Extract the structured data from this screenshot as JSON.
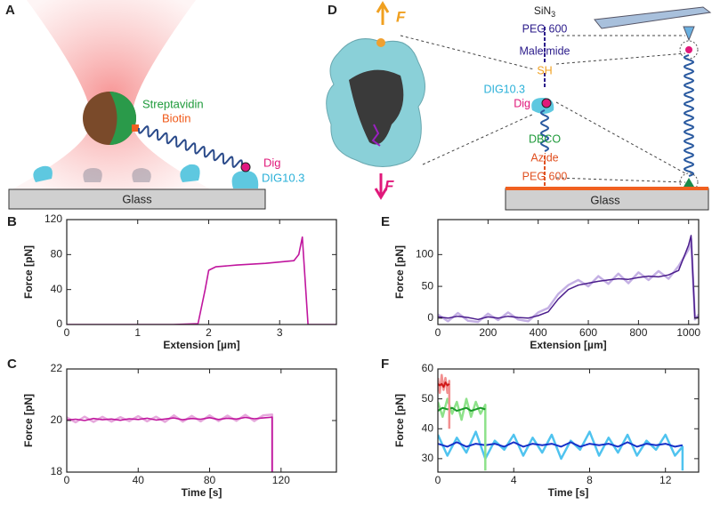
{
  "diagram_a": {
    "label": "A",
    "streptavidin": "Streptavidin",
    "biotin": "Biotin",
    "dig": "Dig",
    "dig10": "DIG10.3",
    "glass": "Glass"
  },
  "diagram_d": {
    "label": "D",
    "force_top": "F",
    "force_bottom": "F",
    "sin": "SiN",
    "sin_sub": "3",
    "chain": [
      "PEG 600",
      "Maleimide",
      "SH",
      "DIG10.3",
      "Dig",
      "DBCO",
      "Azide",
      "PEG 600"
    ],
    "glass": "Glass"
  },
  "chart_data": [
    {
      "type": "line",
      "label": "B",
      "ylabel": "Force [pN]",
      "xlabel": "Extension [µm]",
      "xlim": [
        0,
        3.8
      ],
      "ylim": [
        0,
        120
      ],
      "xticks": [
        0,
        1,
        2,
        3
      ],
      "yticks": [
        0,
        40,
        80,
        120
      ],
      "series": [
        {
          "color": "#c0169e",
          "width": 1.6,
          "x": [
            0,
            0.5,
            1,
            1.5,
            1.85,
            1.95,
            2.0,
            2.1,
            2.4,
            2.8,
            3.2,
            3.27,
            3.32,
            3.4,
            3.5,
            3.8
          ],
          "values": [
            0,
            0,
            0,
            0,
            1,
            40,
            62,
            66,
            68,
            70,
            73,
            80,
            100,
            0,
            0,
            0
          ]
        }
      ]
    },
    {
      "type": "line",
      "label": "C",
      "ylabel": "Force [pN]",
      "xlabel": "Time [s]",
      "xlim": [
        0,
        151
      ],
      "ylim": [
        18,
        22
      ],
      "xticks": [
        0,
        40,
        80,
        120
      ],
      "yticks": [
        18,
        20,
        22
      ],
      "series": [
        {
          "color": "#e6a8dc",
          "width": 2.5,
          "x": [
            0,
            5,
            10,
            15,
            20,
            25,
            30,
            35,
            40,
            45,
            50,
            55,
            60,
            65,
            70,
            75,
            80,
            85,
            90,
            95,
            100,
            105,
            110,
            115,
            115
          ],
          "values": [
            20.12,
            19.93,
            20.15,
            19.95,
            20.14,
            19.96,
            20.13,
            19.98,
            20.17,
            19.97,
            20.15,
            19.95,
            20.2,
            19.96,
            20.18,
            19.97,
            20.2,
            19.98,
            20.19,
            19.99,
            20.22,
            19.98,
            20.2,
            20.23,
            18
          ]
        },
        {
          "color": "#c0169e",
          "width": 1.6,
          "x": [
            0,
            5,
            10,
            15,
            20,
            25,
            30,
            35,
            40,
            45,
            50,
            55,
            60,
            65,
            70,
            75,
            80,
            85,
            90,
            95,
            100,
            105,
            110,
            115,
            115
          ],
          "values": [
            20.02,
            20.05,
            20.0,
            20.08,
            20.03,
            20.06,
            20.01,
            20.07,
            20.04,
            20.09,
            20.02,
            20.06,
            20.1,
            20.03,
            20.08,
            20.05,
            20.11,
            20.04,
            20.09,
            20.06,
            20.12,
            20.07,
            20.1,
            20.13,
            18
          ]
        }
      ]
    },
    {
      "type": "line",
      "label": "E",
      "ylabel": "Force [pN]",
      "xlabel": "Extension [µm]",
      "xlim": [
        0,
        1040
      ],
      "ylim": [
        -10,
        155
      ],
      "xticks": [
        0,
        200,
        400,
        600,
        800,
        1000
      ],
      "yticks": [
        0,
        50,
        100
      ],
      "series": [
        {
          "color": "#c4b0e4",
          "width": 2.5,
          "x": [
            0,
            40,
            80,
            120,
            160,
            200,
            240,
            280,
            320,
            360,
            400,
            440,
            480,
            520,
            560,
            600,
            640,
            680,
            720,
            760,
            800,
            840,
            880,
            920,
            960,
            1000,
            1010,
            1025,
            1040
          ],
          "values": [
            6,
            -5,
            8,
            -4,
            -6,
            7,
            -3,
            9,
            -2,
            -5,
            9,
            16,
            38,
            52,
            60,
            50,
            66,
            54,
            70,
            55,
            72,
            60,
            74,
            62,
            82,
            108,
            125,
            -2,
            6
          ]
        },
        {
          "color": "#4b1d8c",
          "width": 1.5,
          "x": [
            0,
            40,
            80,
            120,
            160,
            200,
            240,
            280,
            320,
            360,
            400,
            440,
            480,
            520,
            560,
            600,
            640,
            680,
            720,
            760,
            800,
            840,
            880,
            920,
            960,
            1000,
            1010,
            1025,
            1040
          ],
          "values": [
            2,
            0,
            3,
            1,
            -2,
            2,
            0,
            3,
            1,
            0,
            4,
            10,
            30,
            45,
            52,
            55,
            58,
            60,
            62,
            61,
            64,
            66,
            65,
            68,
            75,
            115,
            130,
            0,
            2
          ]
        }
      ]
    },
    {
      "type": "line",
      "label": "F",
      "ylabel": "Force [pN]",
      "xlabel": "Time [s]",
      "xlim": [
        0,
        13.75
      ],
      "ylim": [
        25.5,
        60
      ],
      "xticks": [
        0,
        4,
        8,
        12
      ],
      "yticks": [
        30,
        40,
        50,
        60
      ],
      "series": [
        {
          "color": "#4fc3ef",
          "width": 2.5,
          "x": [
            0,
            0.5,
            1,
            1.5,
            2,
            2.5,
            3,
            3.5,
            4,
            4.5,
            5,
            5.5,
            6,
            6.5,
            7,
            7.5,
            8,
            8.5,
            9,
            9.5,
            10,
            10.5,
            11,
            11.5,
            12,
            12.5,
            12.9,
            12.9
          ],
          "values": [
            38,
            31,
            37,
            32,
            39,
            30,
            36,
            33,
            38,
            31,
            37,
            32,
            38,
            30,
            36,
            33,
            39,
            31,
            37,
            32,
            38,
            31,
            36,
            33,
            38,
            31,
            34,
            26
          ]
        },
        {
          "color": "#1530c8",
          "width": 2,
          "x": [
            0,
            0.5,
            1,
            1.5,
            2,
            2.5,
            3,
            3.5,
            4,
            4.5,
            5,
            5.5,
            6,
            6.5,
            7,
            7.5,
            8,
            8.5,
            9,
            9.5,
            10,
            10.5,
            11,
            11.5,
            12,
            12.5,
            12.9,
            12.9
          ],
          "values": [
            35,
            34,
            35.5,
            34,
            35,
            34.5,
            35,
            34,
            35.5,
            34,
            35,
            34.5,
            35,
            34,
            35.5,
            34,
            35,
            34.5,
            35,
            34,
            35.5,
            34,
            35,
            34.5,
            35,
            34,
            34.5,
            34.5
          ]
        },
        {
          "color": "#8ee28a",
          "width": 2.5,
          "x": [
            0,
            0.25,
            0.5,
            0.75,
            1,
            1.25,
            1.5,
            1.75,
            2,
            2.25,
            2.5,
            2.5
          ],
          "values": [
            49,
            44,
            50,
            45,
            49,
            43,
            50,
            44,
            49,
            45,
            48,
            26
          ]
        },
        {
          "color": "#1a9a2a",
          "width": 2,
          "x": [
            0,
            0.25,
            0.5,
            0.75,
            1,
            1.25,
            1.5,
            1.75,
            2,
            2.25,
            2.5,
            2.5
          ],
          "values": [
            46,
            47,
            46.5,
            47,
            46,
            46.5,
            47,
            46,
            46.5,
            47,
            46.5,
            46.5
          ]
        },
        {
          "color": "#f29090",
          "width": 2.5,
          "x": [
            0,
            0.1,
            0.2,
            0.3,
            0.4,
            0.5,
            0.6,
            0.6
          ],
          "values": [
            57,
            52,
            58,
            53,
            57,
            52,
            56,
            40
          ]
        },
        {
          "color": "#d01818",
          "width": 2,
          "x": [
            0,
            0.1,
            0.2,
            0.3,
            0.4,
            0.5,
            0.6,
            0.6
          ],
          "values": [
            55,
            54.5,
            55,
            54,
            55.5,
            54.5,
            55,
            55
          ]
        }
      ]
    }
  ]
}
